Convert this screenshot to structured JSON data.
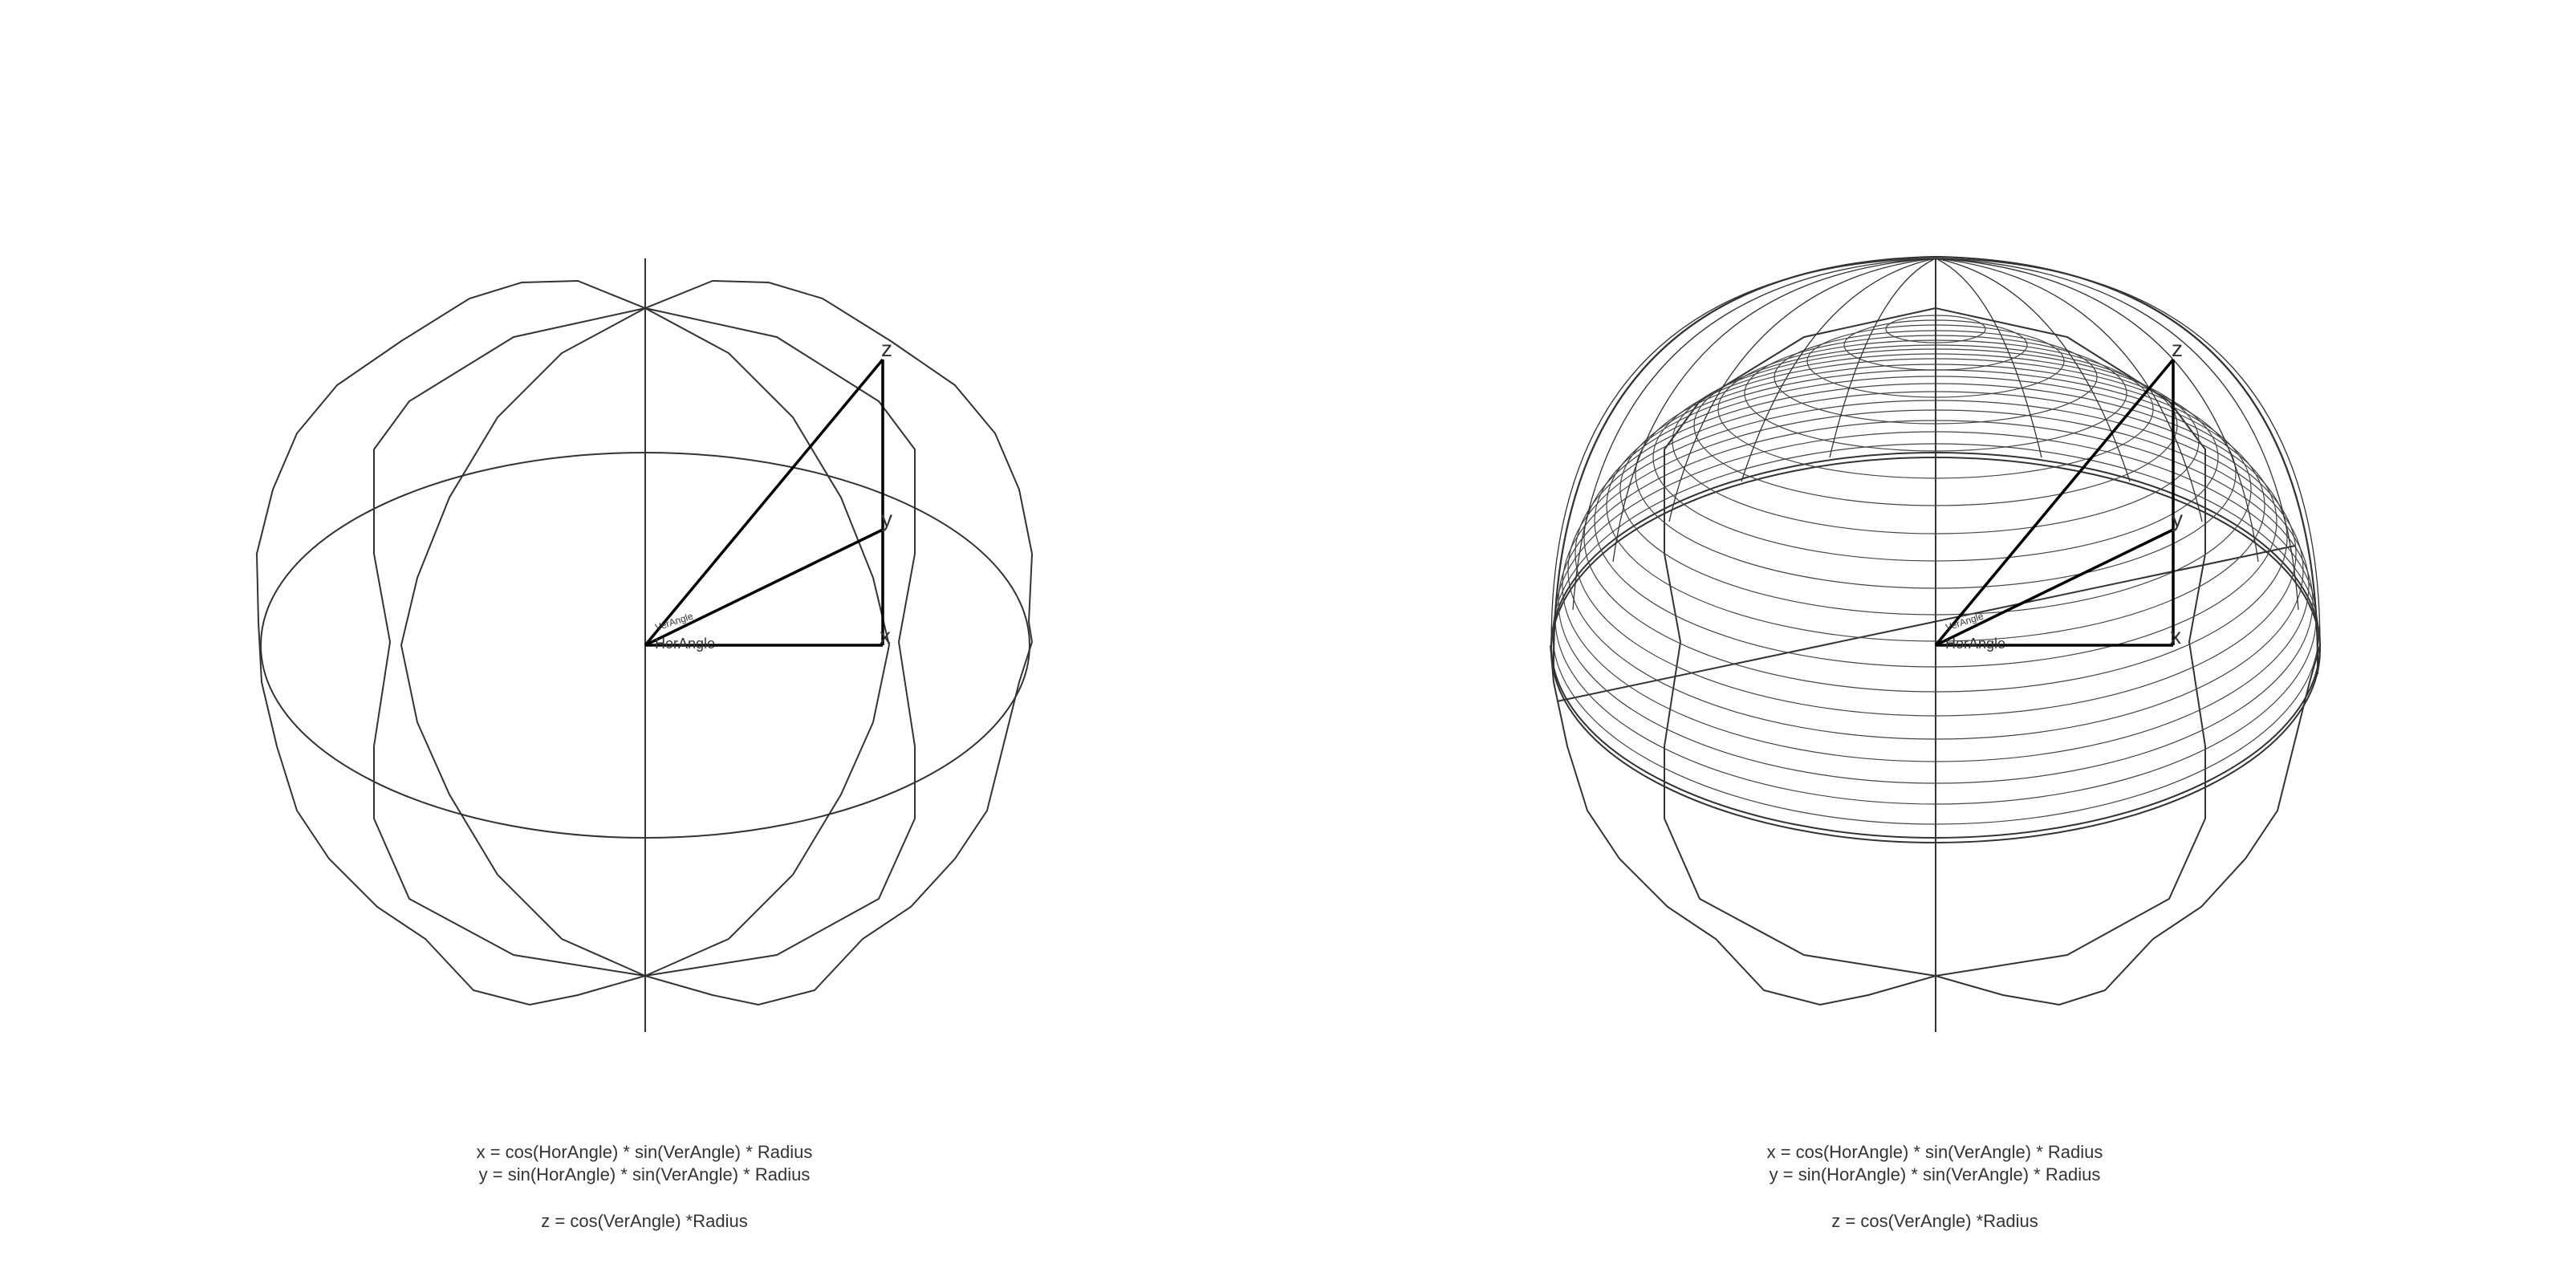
{
  "panels": [
    {
      "id": "left",
      "description_labels": {
        "z": "z",
        "y": "y",
        "x": "x",
        "ver_angle": "VerAngle",
        "hor_angle": "HorAngle"
      },
      "formulas": {
        "x": "x = cos(HorAngle) * sin(VerAngle) * Radius",
        "y": "y = sin(HorAngle) * sin(VerAngle) * Radius",
        "z": "z = cos(VerAngle) *Radius"
      }
    },
    {
      "id": "right",
      "description_labels": {
        "z": "z",
        "y": "y",
        "x": "x",
        "ver_angle": "VerAngle",
        "hor_angle": "HorAngle"
      },
      "formulas": {
        "x": "x = cos(HorAngle) * sin(VerAngle) * Radius",
        "y": "y = sin(HorAngle) * sin(VerAngle) * Radius",
        "z": "z = cos(VerAngle) *Radius"
      }
    }
  ],
  "colors": {
    "wire": "#333333",
    "axis": "#000000",
    "text": "#333333",
    "background": "#ffffff"
  }
}
